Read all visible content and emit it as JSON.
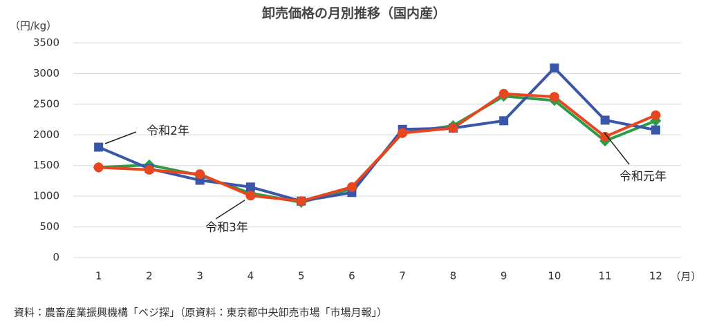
{
  "chart_data": {
    "type": "line",
    "title": "卸売価格の月別推移（国内産）",
    "y_unit": "（円/kg）",
    "x_unit": "（月）",
    "source": "資料：農畜産業振興機構「ベジ探」（原資料：東京都中央卸売市場「市場月報」）",
    "categories": [
      "1",
      "2",
      "3",
      "4",
      "5",
      "6",
      "7",
      "8",
      "9",
      "10",
      "11",
      "12"
    ],
    "series": [
      {
        "name": "令和元年",
        "color": "#2e9b48",
        "marker": "diamond",
        "values": [
          1470,
          1510,
          1340,
          1050,
          900,
          1120,
          2030,
          2150,
          2630,
          2560,
          1900,
          2230
        ]
      },
      {
        "name": "令和2年",
        "color": "#3a56a8",
        "marker": "square",
        "values": [
          1800,
          1450,
          1260,
          1150,
          920,
          1060,
          2090,
          2110,
          2230,
          3090,
          2240,
          2080
        ]
      },
      {
        "name": "令和3年",
        "color": "#e8461e",
        "marker": "circle",
        "values": [
          1470,
          1430,
          1360,
          1010,
          920,
          1150,
          2030,
          2110,
          2670,
          2620,
          1970,
          2320
        ]
      }
    ],
    "ylim": [
      0,
      3500
    ],
    "yticks": [
      0,
      500,
      1000,
      1500,
      2000,
      2500,
      3000,
      3500
    ],
    "grid": true
  }
}
